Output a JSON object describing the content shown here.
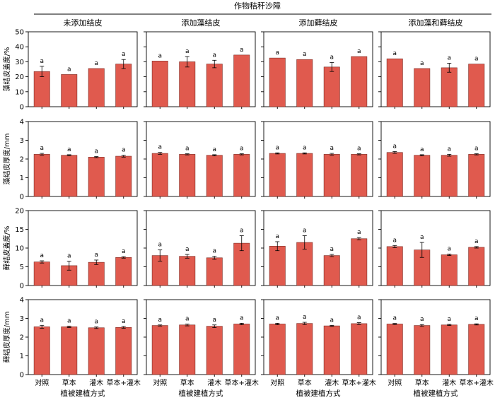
{
  "figure": {
    "top_title": "作物秸秆沙障",
    "x_axis_title": "植被建植方式",
    "colors": {
      "bar": "#e05a4e",
      "bar_edge": "#7a2a22",
      "axis": "#000000"
    }
  },
  "chart_data": {
    "type": "bar",
    "layout": "grid 4 rows x 4 columns",
    "columns": [
      "未添加结皮",
      "添加藻结皮",
      "添加藓结皮",
      "添加藻和藓结皮"
    ],
    "categories": [
      "对照",
      "草本",
      "灌木",
      "草本+灌木"
    ],
    "xlabel": "植被建植方式",
    "rows": [
      {
        "ylabel": "藻结皮盖度/%",
        "ylim": [
          0,
          50
        ],
        "yticks": [
          0,
          10,
          20,
          30,
          40,
          50
        ],
        "panels": [
          {
            "values": [
              23.5,
              21.5,
              25.5,
              28.5
            ],
            "errors": [
              3.5,
              0,
              0,
              3
            ],
            "labels": [
              "a",
              "a",
              "a",
              "a"
            ]
          },
          {
            "values": [
              30.5,
              30,
              28.5,
              34.5
            ],
            "errors": [
              0,
              3.5,
              2.5,
              0
            ],
            "labels": [
              "a",
              "a",
              "a",
              "a"
            ]
          },
          {
            "values": [
              32.5,
              31.5,
              26.5,
              33.5
            ],
            "errors": [
              0,
              0,
              3,
              0
            ],
            "labels": [
              "a",
              "a",
              "a",
              "a"
            ]
          },
          {
            "values": [
              32,
              25.5,
              26,
              28.5
            ],
            "errors": [
              0,
              0,
              3,
              0
            ],
            "labels": [
              "a",
              "a",
              "a",
              "a"
            ]
          }
        ]
      },
      {
        "ylabel": "藻结皮厚度/mm",
        "ylim": [
          0,
          4
        ],
        "yticks": [
          0,
          1,
          2,
          3,
          4
        ],
        "panels": [
          {
            "values": [
              2.25,
              2.2,
              2.1,
              2.15
            ],
            "errors": [
              0.05,
              0.03,
              0.03,
              0.05
            ],
            "labels": [
              "a",
              "a",
              "a",
              "a"
            ]
          },
          {
            "values": [
              2.3,
              2.25,
              2.2,
              2.25
            ],
            "errors": [
              0.05,
              0.03,
              0.03,
              0.03
            ],
            "labels": [
              "a",
              "a",
              "a",
              "a"
            ]
          },
          {
            "values": [
              2.3,
              2.3,
              2.25,
              2.25
            ],
            "errors": [
              0.03,
              0.03,
              0.05,
              0.03
            ],
            "labels": [
              "a",
              "a",
              "a",
              "a"
            ]
          },
          {
            "values": [
              2.35,
              2.2,
              2.2,
              2.25
            ],
            "errors": [
              0.05,
              0.03,
              0.05,
              0.03
            ],
            "labels": [
              "a",
              "a",
              "a",
              "a"
            ]
          }
        ]
      },
      {
        "ylabel": "藓结皮盖度/%",
        "ylim": [
          0,
          20
        ],
        "yticks": [
          0,
          5,
          10,
          15,
          20
        ],
        "panels": [
          {
            "values": [
              6.3,
              5.3,
              6.2,
              7.5
            ],
            "errors": [
              0.3,
              1.2,
              0.6,
              0.2
            ],
            "labels": [
              "a",
              "a",
              "a",
              "a"
            ]
          },
          {
            "values": [
              8,
              7.8,
              7.4,
              11.3
            ],
            "errors": [
              1.5,
              0.5,
              0.4,
              2
            ],
            "labels": [
              "a",
              "a",
              "a",
              "a"
            ]
          },
          {
            "values": [
              10.5,
              11.5,
              8,
              12.5
            ],
            "errors": [
              1.2,
              1.8,
              0.3,
              0.3
            ],
            "labels": [
              "a",
              "a",
              "a",
              "a"
            ]
          },
          {
            "values": [
              10.4,
              9.5,
              8.2,
              10.2
            ],
            "errors": [
              0.3,
              2,
              0.2,
              0.2
            ],
            "labels": [
              "a",
              "a",
              "a",
              "a"
            ]
          }
        ]
      },
      {
        "ylabel": "藓结皮厚度/mm",
        "ylim": [
          0,
          4
        ],
        "yticks": [
          0,
          1,
          2,
          3,
          4
        ],
        "panels": [
          {
            "values": [
              2.55,
              2.55,
              2.5,
              2.52
            ],
            "errors": [
              0.08,
              0.04,
              0.04,
              0.05
            ],
            "labels": [
              "a",
              "a",
              "a",
              "a"
            ]
          },
          {
            "values": [
              2.62,
              2.65,
              2.58,
              2.7
            ],
            "errors": [
              0.03,
              0.05,
              0.07,
              0.04
            ],
            "labels": [
              "a",
              "a",
              "a",
              "a"
            ]
          },
          {
            "values": [
              2.7,
              2.73,
              2.6,
              2.72
            ],
            "errors": [
              0.04,
              0.06,
              0.03,
              0.05
            ],
            "labels": [
              "a",
              "a",
              "a",
              "a"
            ]
          },
          {
            "values": [
              2.7,
              2.62,
              2.65,
              2.68
            ],
            "errors": [
              0.03,
              0.05,
              0.03,
              0.03
            ],
            "labels": [
              "a",
              "a",
              "a",
              "a"
            ]
          }
        ]
      }
    ]
  }
}
